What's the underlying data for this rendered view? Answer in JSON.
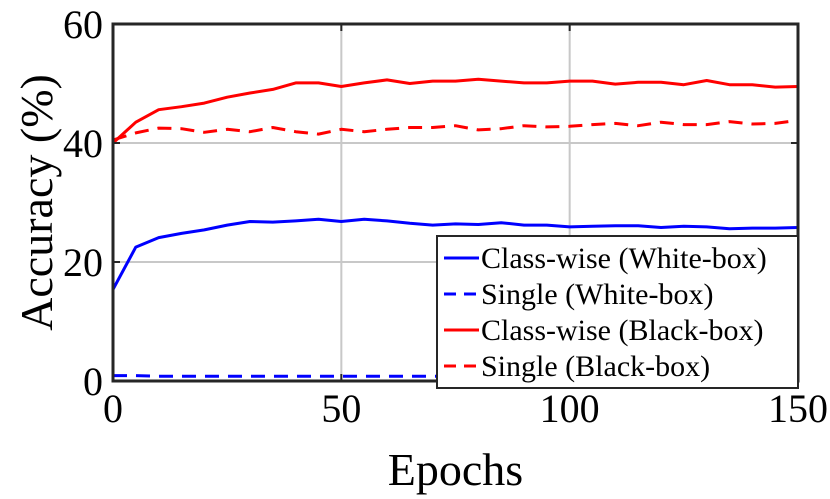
{
  "chart_data": {
    "type": "line",
    "xlabel": "Epochs",
    "ylabel": "Accuracy (%)",
    "xlim": [
      0,
      150
    ],
    "ylim": [
      0,
      60
    ],
    "x_ticks": [
      0,
      50,
      100,
      150
    ],
    "y_ticks": [
      0,
      20,
      40,
      60
    ],
    "grid": true,
    "legend_position": "bottom-right",
    "x": [
      0,
      5,
      10,
      15,
      20,
      25,
      30,
      35,
      40,
      45,
      50,
      55,
      60,
      65,
      70,
      75,
      80,
      85,
      90,
      95,
      100,
      105,
      110,
      115,
      120,
      125,
      130,
      135,
      140,
      145,
      150
    ],
    "series": [
      {
        "name": "Class-wise (White-box)",
        "color": "#0000ff",
        "dash": "solid",
        "values": [
          15.4,
          22.5,
          24.1,
          24.8,
          25.4,
          26.2,
          26.8,
          26.7,
          26.9,
          27.2,
          26.8,
          27.2,
          26.9,
          26.5,
          26.2,
          26.4,
          26.3,
          26.6,
          26.2,
          26.2,
          25.9,
          26.0,
          26.1,
          26.1,
          25.8,
          26.0,
          25.9,
          25.6,
          25.7,
          25.7,
          25.8
        ]
      },
      {
        "name": "Single (White-box)",
        "color": "#0000ff",
        "dash": "dashed",
        "values": [
          0.9,
          0.9,
          0.8,
          0.8,
          0.8,
          0.8,
          0.8,
          0.8,
          0.8,
          0.8,
          0.8,
          0.8,
          0.8,
          0.8,
          0.8,
          0.8,
          0.8,
          0.8,
          0.8,
          0.8,
          0.8,
          0.8,
          0.8,
          0.8,
          0.8,
          0.8,
          0.8,
          0.8,
          0.8,
          0.8,
          0.8
        ]
      },
      {
        "name": "Class-wise (Black-box)",
        "color": "#ff0000",
        "dash": "solid",
        "values": [
          40.0,
          43.5,
          45.6,
          46.1,
          46.7,
          47.7,
          48.4,
          49.0,
          50.1,
          50.1,
          49.5,
          50.1,
          50.6,
          50.0,
          50.4,
          50.4,
          50.7,
          50.4,
          50.1,
          50.1,
          50.4,
          50.4,
          49.9,
          50.2,
          50.2,
          49.8,
          50.5,
          49.8,
          49.8,
          49.4,
          49.5
        ]
      },
      {
        "name": "Single (Black-box)",
        "color": "#ff0000",
        "dash": "dashed",
        "values": [
          40.5,
          41.7,
          42.5,
          42.4,
          41.8,
          42.3,
          41.9,
          42.6,
          41.9,
          41.5,
          42.3,
          41.9,
          42.3,
          42.6,
          42.6,
          42.9,
          42.2,
          42.4,
          42.9,
          42.7,
          42.8,
          43.1,
          43.3,
          42.9,
          43.5,
          43.1,
          43.1,
          43.6,
          43.2,
          43.3,
          43.8
        ]
      }
    ]
  }
}
